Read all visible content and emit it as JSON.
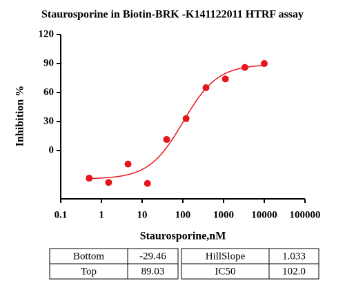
{
  "chart_data": {
    "type": "scatter",
    "title": "Staurosporine in Biotin-BRK -K141122011 HTRF assay",
    "x_label": "Staurosporine,nM",
    "y_label": "Inhibition %",
    "x": [
      0.5,
      1.5,
      4.5,
      13.5,
      40,
      120,
      370,
      1110,
      3333,
      10000
    ],
    "values": [
      -28.6,
      -33,
      -14,
      -34,
      11.4,
      33,
      65,
      74,
      86,
      90
    ],
    "color": "#e8141b",
    "x_log": true,
    "xlim": [
      0.1,
      100000
    ],
    "xticks": [
      0.1,
      1,
      10,
      100,
      1000,
      10000,
      100000
    ],
    "ylim": [
      -50,
      120
    ],
    "yticks": [
      0,
      30,
      60,
      90,
      120
    ]
  },
  "table": {
    "rows": [
      [
        "Bottom",
        "-29.46",
        "HillSlope",
        "1.033"
      ],
      [
        "Top",
        "89.03",
        "IC50",
        "102.0"
      ]
    ]
  }
}
